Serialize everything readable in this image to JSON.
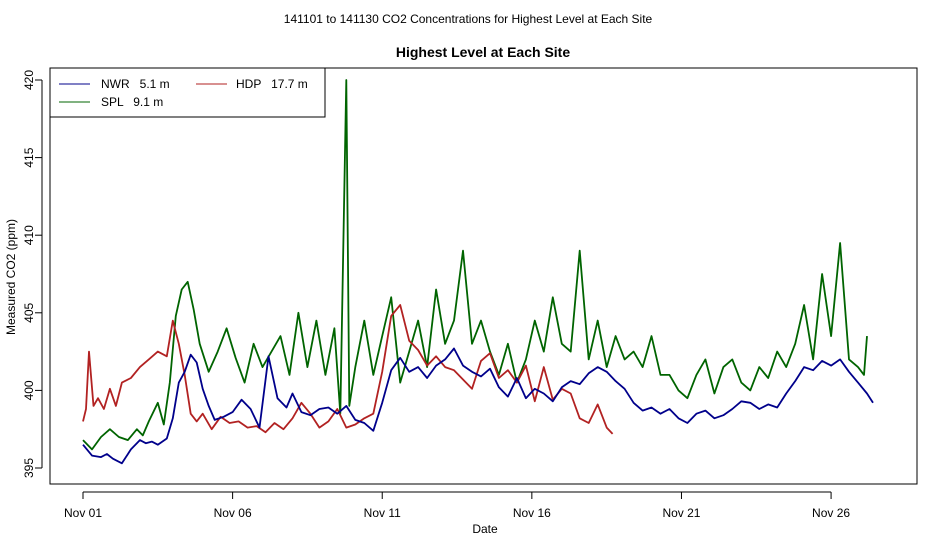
{
  "chart_data": {
    "type": "line",
    "suptitle": "141101  to  141130 CO2 Concentrations for Highest Level at Each Site",
    "title": "Highest Level at Each Site",
    "xlabel": "Date",
    "ylabel": "Measured CO2 (ppm)",
    "xlim": [
      0,
      27.2
    ],
    "ylim": [
      394.5,
      420.5
    ],
    "x_ticks": [
      {
        "x": 0,
        "label": "Nov 01"
      },
      {
        "x": 5,
        "label": "Nov 06"
      },
      {
        "x": 10,
        "label": "Nov 11"
      },
      {
        "x": 15,
        "label": "Nov 16"
      },
      {
        "x": 20,
        "label": "Nov 21"
      },
      {
        "x": 25,
        "label": "Nov 26"
      }
    ],
    "y_ticks": [
      395,
      400,
      405,
      410,
      415,
      420
    ],
    "legend": {
      "position": "top-left"
    },
    "series": [
      {
        "name": "NWR   5.1 m",
        "color": "#00008b",
        "x": [
          0.0,
          0.3,
          0.6,
          0.8,
          1.0,
          1.3,
          1.6,
          1.9,
          2.1,
          2.3,
          2.5,
          2.8,
          3.0,
          3.2,
          3.4,
          3.6,
          3.8,
          4.0,
          4.2,
          4.4,
          4.7,
          5.0,
          5.3,
          5.6,
          5.9,
          6.2,
          6.5,
          6.8,
          7.0,
          7.3,
          7.6,
          7.9,
          8.2,
          8.5,
          8.8,
          9.1,
          9.4,
          9.7,
          10.0,
          10.3,
          10.6,
          10.9,
          11.2,
          11.5,
          11.8,
          12.1,
          12.4,
          12.7,
          13.0,
          13.3,
          13.6,
          13.9,
          14.2,
          14.5,
          14.8,
          15.1,
          15.4,
          15.7,
          16.0,
          16.3,
          16.6,
          16.9,
          17.2,
          17.5,
          17.8,
          18.1,
          18.4,
          18.7,
          19.0,
          19.3,
          19.6,
          19.9,
          20.2,
          20.5,
          20.8,
          21.1,
          21.4,
          21.7,
          22.0,
          22.3,
          22.6,
          22.9,
          23.2,
          23.5,
          23.8,
          24.1,
          24.4,
          24.7,
          25.0,
          25.3,
          25.6,
          25.9,
          26.2,
          26.4
        ],
        "values": [
          396.5,
          395.8,
          395.7,
          395.9,
          395.6,
          395.3,
          396.2,
          396.8,
          396.6,
          396.7,
          396.5,
          396.9,
          398.2,
          400.5,
          401.2,
          402.3,
          401.8,
          400.1,
          399.0,
          398.1,
          398.3,
          398.6,
          399.4,
          398.8,
          397.6,
          402.2,
          399.5,
          398.9,
          399.8,
          398.6,
          398.4,
          398.8,
          398.9,
          398.5,
          399.0,
          398.1,
          397.9,
          397.4,
          399.2,
          401.3,
          402.1,
          401.2,
          401.5,
          400.8,
          401.6,
          402.0,
          402.7,
          401.6,
          401.2,
          400.9,
          401.4,
          400.2,
          399.6,
          400.8,
          399.5,
          400.1,
          399.8,
          399.3,
          400.2,
          400.6,
          400.4,
          401.1,
          401.5,
          401.2,
          400.6,
          400.1,
          399.2,
          398.7,
          398.9,
          398.5,
          398.8,
          398.2,
          397.9,
          398.5,
          398.7,
          398.2,
          398.4,
          398.8,
          399.3,
          399.2,
          398.8,
          399.1,
          398.9,
          399.8,
          400.6,
          401.5,
          401.3,
          401.9,
          401.6,
          402.0,
          401.2,
          400.5,
          399.8,
          399.2
        ]
      },
      {
        "name": "SPL   9.1 m",
        "color": "#006400",
        "x": [
          0.0,
          0.3,
          0.6,
          0.9,
          1.2,
          1.5,
          1.8,
          2.0,
          2.2,
          2.5,
          2.7,
          2.9,
          3.1,
          3.3,
          3.5,
          3.7,
          3.9,
          4.2,
          4.5,
          4.8,
          5.1,
          5.4,
          5.7,
          6.0,
          6.3,
          6.6,
          6.9,
          7.2,
          7.5,
          7.8,
          8.1,
          8.4,
          8.6,
          8.8,
          8.9,
          9.1,
          9.4,
          9.7,
          10.0,
          10.3,
          10.6,
          10.9,
          11.2,
          11.5,
          11.8,
          12.1,
          12.4,
          12.7,
          13.0,
          13.3,
          13.6,
          13.9,
          14.2,
          14.5,
          14.8,
          15.1,
          15.4,
          15.7,
          16.0,
          16.3,
          16.6,
          16.9,
          17.2,
          17.5,
          17.8,
          18.1,
          18.4,
          18.7,
          19.0,
          19.3,
          19.6,
          19.9,
          20.2,
          20.5,
          20.8,
          21.1,
          21.4,
          21.7,
          22.0,
          22.3,
          22.6,
          22.9,
          23.2,
          23.5,
          23.8,
          24.1,
          24.4,
          24.7,
          25.0,
          25.3,
          25.6,
          25.9,
          26.1,
          26.2
        ],
        "values": [
          396.8,
          396.2,
          397.0,
          397.5,
          397.0,
          396.8,
          397.5,
          397.1,
          398.0,
          399.2,
          397.8,
          400.5,
          404.8,
          406.5,
          407.0,
          405.2,
          403.0,
          401.2,
          402.5,
          404.0,
          402.1,
          400.5,
          403.0,
          401.5,
          402.5,
          403.5,
          401.0,
          405.0,
          401.5,
          404.5,
          401.0,
          404.0,
          398.5,
          420.0,
          399.0,
          401.5,
          404.5,
          401.0,
          403.5,
          406.0,
          400.5,
          402.5,
          404.5,
          401.5,
          406.5,
          403.0,
          404.5,
          409.0,
          403.0,
          404.5,
          402.5,
          401.0,
          403.0,
          400.5,
          402.0,
          404.5,
          402.5,
          406.0,
          403.0,
          402.5,
          409.0,
          402.0,
          404.5,
          401.5,
          403.5,
          402.0,
          402.5,
          401.5,
          403.5,
          401.0,
          401.0,
          400.0,
          399.5,
          401.0,
          402.0,
          399.8,
          401.5,
          402.0,
          400.5,
          400.0,
          401.5,
          400.8,
          402.5,
          401.5,
          403.0,
          405.5,
          402.0,
          407.5,
          403.5,
          409.5,
          402.0,
          401.5,
          401.0,
          403.5
        ]
      },
      {
        "name": "HDP   17.7 m",
        "color": "#b22222",
        "x": [
          0.0,
          0.1,
          0.2,
          0.35,
          0.5,
          0.7,
          0.9,
          1.1,
          1.3,
          1.6,
          1.9,
          2.2,
          2.5,
          2.8,
          3.0,
          3.2,
          3.4,
          3.6,
          3.8,
          4.0,
          4.3,
          4.6,
          4.9,
          5.2,
          5.5,
          5.8,
          6.1,
          6.4,
          6.7,
          7.0,
          7.3,
          7.6,
          7.9,
          8.2,
          8.5,
          8.8,
          9.1,
          9.4,
          9.7,
          10.0,
          10.3,
          10.6,
          10.9,
          11.2,
          11.5,
          11.8,
          12.1,
          12.4,
          12.7,
          13.0,
          13.3,
          13.6,
          13.9,
          14.2,
          14.5,
          14.8,
          15.1,
          15.4,
          15.7,
          16.0,
          16.3,
          16.6,
          16.9,
          17.2,
          17.5,
          17.7
        ],
        "values": [
          398.0,
          398.8,
          402.5,
          399.0,
          399.5,
          398.8,
          400.1,
          399.0,
          400.5,
          400.8,
          401.5,
          402.0,
          402.5,
          402.2,
          404.5,
          403.0,
          401.0,
          398.5,
          398.0,
          398.5,
          397.5,
          398.3,
          397.9,
          398.0,
          397.6,
          397.7,
          397.3,
          397.9,
          397.5,
          398.2,
          399.2,
          398.5,
          397.6,
          398.0,
          398.8,
          397.6,
          397.8,
          398.2,
          398.5,
          401.2,
          404.8,
          405.5,
          403.2,
          402.6,
          401.6,
          402.2,
          401.5,
          401.3,
          400.7,
          400.1,
          401.9,
          402.4,
          400.8,
          401.3,
          400.5,
          401.6,
          399.3,
          401.5,
          399.4,
          400.1,
          399.8,
          398.2,
          397.9,
          399.1,
          397.6,
          397.2
        ]
      }
    ]
  }
}
